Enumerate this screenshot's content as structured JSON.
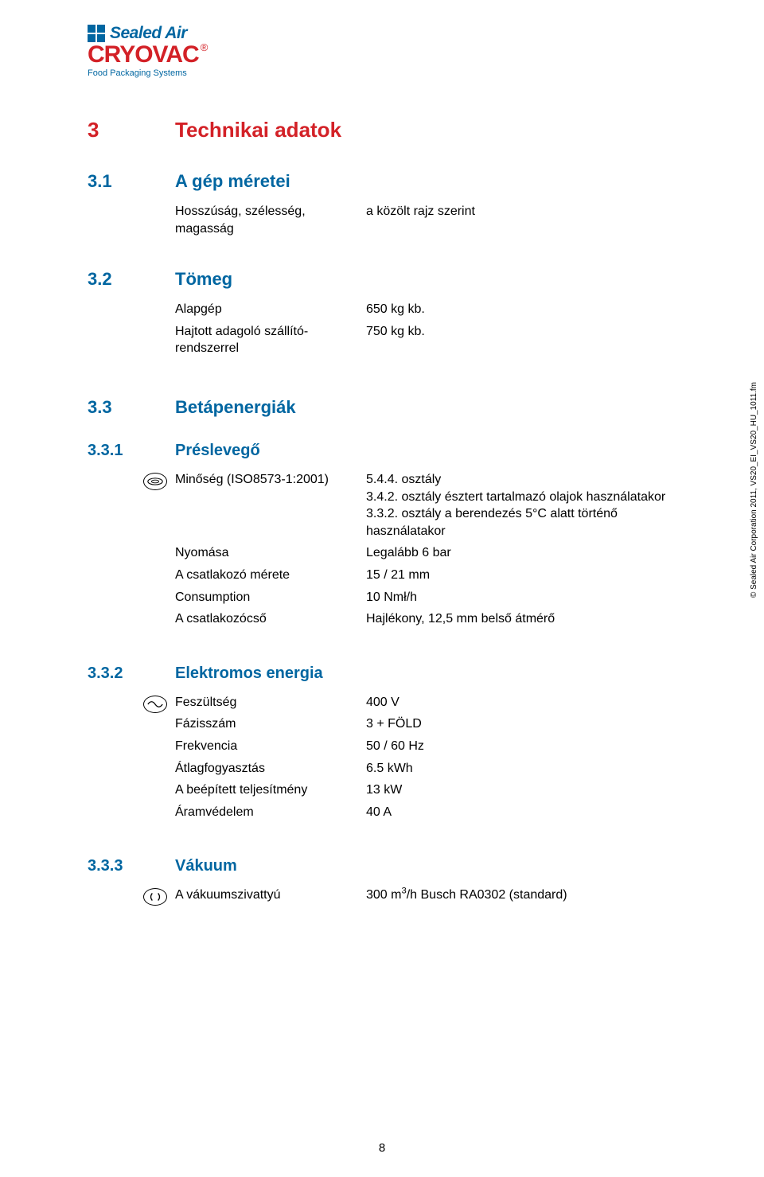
{
  "logo": {
    "sealed_air": "Sealed Air",
    "cryovac": "CRYOVAC",
    "registered": "®",
    "fps": "Food Packaging Systems"
  },
  "colors": {
    "red": "#d32127",
    "blue": "#0066a1",
    "text": "#000000",
    "bg": "#ffffff"
  },
  "copyright": "© Sealed Air Corporation 2011, VS20_EI_VS20_HU_1011.fm",
  "page_number": "8",
  "s3": {
    "num": "3",
    "title": "Technikai adatok"
  },
  "s31": {
    "num": "3.1",
    "title": "A gép méretei",
    "rows": [
      {
        "label": "Hosszúság, szélesség, magasság",
        "value": "a közölt rajz szerint"
      }
    ]
  },
  "s32": {
    "num": "3.2",
    "title": "Tömeg",
    "rows": [
      {
        "label": "Alapgép",
        "value": "650 kg kb."
      },
      {
        "label": "Hajtott adagoló szállító-rendszerrel",
        "value": "750 kg kb."
      }
    ]
  },
  "s33": {
    "num": "3.3",
    "title": "Betápenergiák"
  },
  "s331": {
    "num": "3.3.1",
    "title": "Préslevegő",
    "quality_label": "Minőség (ISO8573-1:2001)",
    "quality_lines": [
      "5.4.4. osztály",
      "3.4.2. osztály észtert tartalmazó olajok használatakor",
      "3.3.2. osztály a berendezés 5°C alatt történő használatakor"
    ],
    "rows": [
      {
        "label": "Nyomása",
        "value": "Legalább 6 bar"
      },
      {
        "label": "A csatlakozó mérete",
        "value": "15 / 21 mm"
      },
      {
        "label": "Consumption",
        "value": "10 Nmł/h"
      },
      {
        "label": "A csatlakozócső",
        "value": "Hajlékony, 12,5 mm belső átmérő"
      }
    ]
  },
  "s332": {
    "num": "3.3.2",
    "title": "Elektromos energia",
    "rows": [
      {
        "label": "Feszültség",
        "value": "400 V"
      },
      {
        "label": "Fázisszám",
        "value": "3 + FÖLD"
      },
      {
        "label": "Frekvencia",
        "value": "50 / 60 Hz"
      },
      {
        "label": "Átlagfogyasztás",
        "value": "6.5 kWh"
      },
      {
        "label": "A beépített teljesítmény",
        "value": "13 kW"
      },
      {
        "label": "Áramvédelem",
        "value": "40 A"
      }
    ]
  },
  "s333": {
    "num": "3.3.3",
    "title": "Vákuum",
    "rows": [
      {
        "label": "A vákuumszivattyú",
        "value_html": "300 m<sup>3</sup>/h Busch RA0302 (standard)"
      }
    ]
  }
}
